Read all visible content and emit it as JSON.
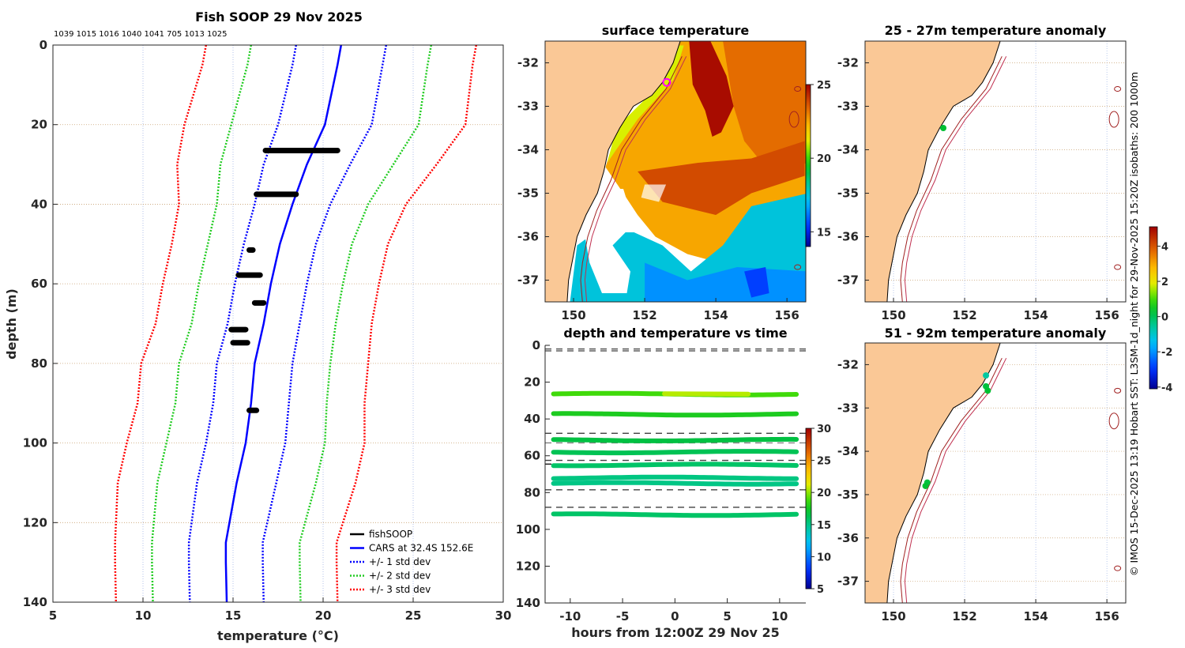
{
  "chart_data": [
    {
      "type": "line",
      "title": "Fish SOOP 29 Nov 2025",
      "subtitle": "1039 1015 1016 1040 1041 705 1013 1025",
      "xlabel": "temperature (°C)",
      "ylabel": "depth (m)",
      "xlim": [
        5,
        30
      ],
      "ylim": [
        0,
        140
      ],
      "y_reversed": true,
      "x_ticks": [
        "5",
        "10",
        "15",
        "20",
        "25",
        "30"
      ],
      "y_ticks": [
        "0",
        "20",
        "40",
        "60",
        "80",
        "100",
        "120",
        "140"
      ],
      "grid": true,
      "legend_position": "bottom-right",
      "legend": [
        "fishSOOP",
        "CARS at 32.4S 152.6E",
        "+/- 1 std dev",
        "+/- 2 std dev",
        "+/- 3 std dev"
      ],
      "colors": {
        "fishSOOP": "#000000",
        "CARS": "#0000ff",
        "std1": "#0000ff",
        "std2": "#22cc22",
        "std3": "#ff0000"
      },
      "cars_profile": {
        "depth": [
          0,
          5,
          20,
          30,
          40,
          50,
          60,
          70,
          80,
          90,
          100,
          110,
          120,
          125,
          130,
          140
        ],
        "temp": [
          21.0,
          20.8,
          20.1,
          19.1,
          18.3,
          17.6,
          17.1,
          16.7,
          16.2,
          16.0,
          15.7,
          15.2,
          14.8,
          14.6,
          14.6,
          14.65
        ],
        "std": [
          2.5,
          2.5,
          2.6,
          2.4,
          2.1,
          2.0,
          2.0,
          2.0,
          2.1,
          2.1,
          2.2,
          2.2,
          2.1,
          2.05,
          2.05,
          2.05
        ]
      },
      "fishsoop_clusters": [
        {
          "depth": 26.5,
          "tmin": 16.8,
          "tmax": 20.8
        },
        {
          "depth": 37.5,
          "tmin": 16.3,
          "tmax": 18.5
        },
        {
          "depth": 51.5,
          "tmin": 15.9,
          "tmax": 16.1
        },
        {
          "depth": 57.8,
          "tmin": 15.3,
          "tmax": 16.5
        },
        {
          "depth": 64.8,
          "tmin": 16.2,
          "tmax": 16.7
        },
        {
          "depth": 71.5,
          "tmin": 14.9,
          "tmax": 15.7
        },
        {
          "depth": 74.8,
          "tmin": 15.0,
          "tmax": 15.8
        },
        {
          "depth": 91.8,
          "tmin": 15.9,
          "tmax": 16.3
        }
      ]
    },
    {
      "type": "heatmap",
      "title": "surface temperature",
      "xlim": [
        149.2,
        156.53
      ],
      "ylim": [
        -37.5,
        -31.5
      ],
      "x_ticks": [
        "150",
        "152",
        "154",
        "156"
      ],
      "y_ticks": [
        "-32",
        "-33",
        "-34",
        "-35",
        "-36",
        "-37"
      ],
      "colorbar": {
        "range": [
          14,
          25
        ],
        "ticks": [
          "15",
          "20",
          "25"
        ]
      },
      "marker": {
        "lon": 152.62,
        "lat": -32.45,
        "color": "#ff00ff"
      }
    },
    {
      "type": "scatter",
      "title": "depth and temperature vs time",
      "xlabel": "hours from 12:00Z 29 Nov 25",
      "xlim": [
        -12.4,
        12.5
      ],
      "ylim": [
        0,
        140
      ],
      "x_ticks": [
        "-10",
        "-5",
        "0",
        "5",
        "10"
      ],
      "y_ticks": [
        "0",
        "20",
        "40",
        "60",
        "80",
        "100",
        "120",
        "140"
      ],
      "colorbar": {
        "range": [
          5,
          30
        ],
        "ticks": [
          "5",
          "10",
          "15",
          "20",
          "25",
          "30"
        ]
      },
      "bands": [
        {
          "depth": 26.5,
          "temp": 18.8
        },
        {
          "depth": 37.5,
          "temp": 17.8
        },
        {
          "depth": 51.5,
          "temp": 16.6
        },
        {
          "depth": 58.0,
          "temp": 16.2
        },
        {
          "depth": 65.0,
          "temp": 15.8
        },
        {
          "depth": 72.0,
          "temp": 15.2
        },
        {
          "depth": 75.0,
          "temp": 15.1
        },
        {
          "depth": 92.0,
          "temp": 15.8
        }
      ],
      "dashed_depths": [
        2.0,
        3.0,
        47.8,
        53.0,
        62.5,
        64.5,
        78.5,
        88.0
      ]
    },
    {
      "type": "scatter",
      "title": "25 - 27m temperature anomaly",
      "xlim": [
        149.2,
        156.53
      ],
      "ylim": [
        -37.5,
        -31.5
      ],
      "x_ticks": [
        "150",
        "152",
        "154",
        "156"
      ],
      "y_ticks": [
        "-32",
        "-33",
        "-34",
        "-35",
        "-36",
        "-37"
      ],
      "points": [
        {
          "lon": 151.4,
          "lat": -33.5,
          "anomaly": 0.3
        }
      ]
    },
    {
      "type": "scatter",
      "title": "51 - 92m temperature anomaly",
      "xlim": [
        149.2,
        156.53
      ],
      "ylim": [
        -37.5,
        -31.5
      ],
      "x_ticks": [
        "150",
        "152",
        "154",
        "156"
      ],
      "y_ticks": [
        "-32",
        "-33",
        "-34",
        "-35",
        "-36",
        "-37"
      ],
      "colorbar": {
        "range": [
          -4.1,
          5.1
        ],
        "ticks": [
          "4",
          "2",
          "0",
          "-2",
          "-4"
        ]
      },
      "points": [
        {
          "lon": 152.6,
          "lat": -32.25,
          "anomaly": -0.6
        },
        {
          "lon": 152.6,
          "lat": -32.5,
          "anomaly": 0.2
        },
        {
          "lon": 152.65,
          "lat": -32.6,
          "anomaly": 0.3
        },
        {
          "lon": 150.95,
          "lat": -34.72,
          "anomaly": 0.2
        },
        {
          "lon": 150.9,
          "lat": -34.8,
          "anomaly": 0.3
        }
      ]
    }
  ],
  "footer_note": "© IMOS 15-Dec-2025 13:19 Hobart SST: L3SM-1d_night for 29-Nov-2025 15:20Z isobaths: 200  1000m"
}
